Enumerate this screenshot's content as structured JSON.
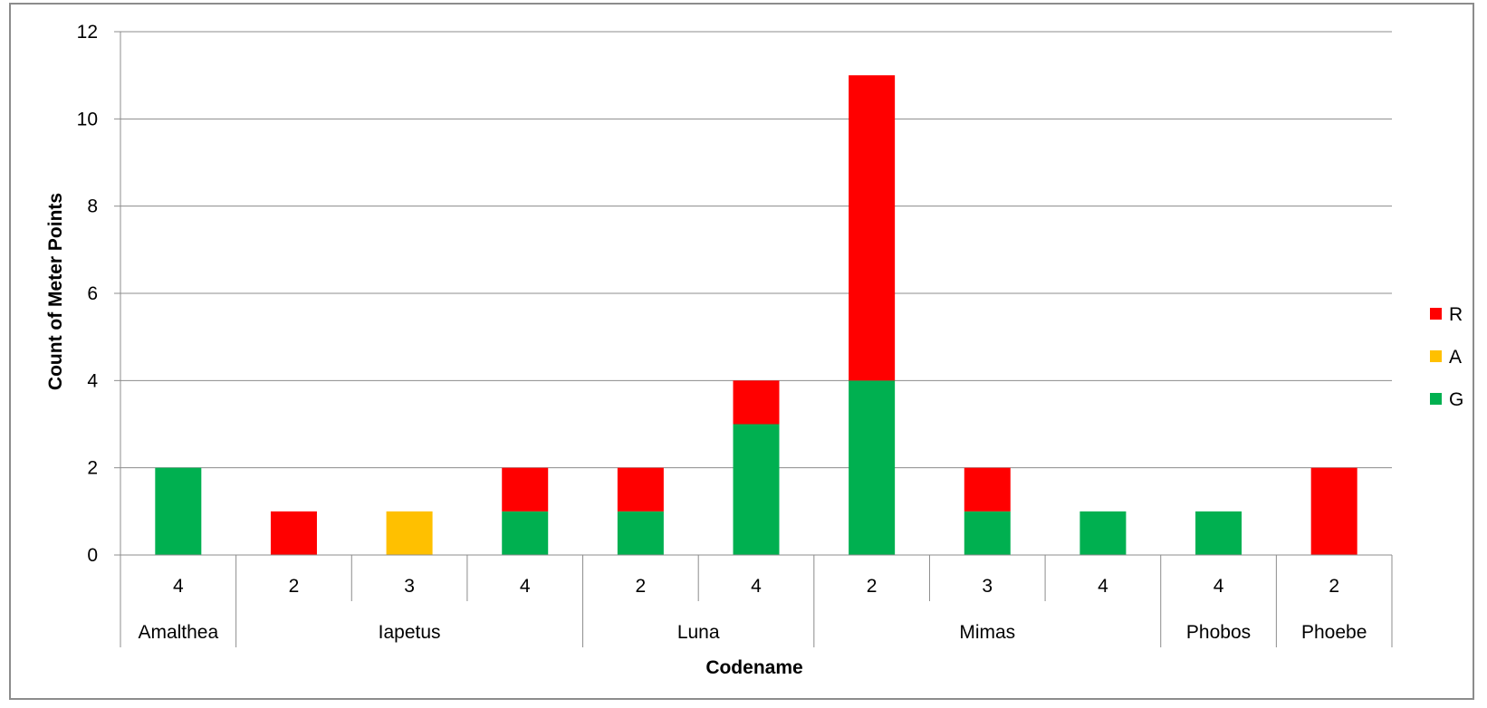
{
  "chart_data": {
    "type": "bar",
    "stacked": true,
    "title": "",
    "xlabel": "Codename",
    "ylabel": "Count of Meter Points",
    "ylim": [
      0,
      12
    ],
    "yticks": [
      0,
      2,
      4,
      6,
      8,
      10,
      12
    ],
    "grid": true,
    "legend_position": "right",
    "categories": [
      {
        "group": "Amalthea",
        "sub": "4"
      },
      {
        "group": "Iapetus",
        "sub": "2"
      },
      {
        "group": "Iapetus",
        "sub": "3"
      },
      {
        "group": "Iapetus",
        "sub": "4"
      },
      {
        "group": "Luna",
        "sub": "2"
      },
      {
        "group": "Luna",
        "sub": "4"
      },
      {
        "group": "Mimas",
        "sub": "2"
      },
      {
        "group": "Mimas",
        "sub": "3"
      },
      {
        "group": "Mimas",
        "sub": "4"
      },
      {
        "group": "Phobos",
        "sub": "4"
      },
      {
        "group": "Phoebe",
        "sub": "2"
      }
    ],
    "groups": [
      "Amalthea",
      "Iapetus",
      "Luna",
      "Mimas",
      "Phobos",
      "Phoebe"
    ],
    "series": [
      {
        "name": "G",
        "color": "#00b050",
        "values": [
          2,
          0,
          0,
          1,
          1,
          3,
          4,
          1,
          1,
          1,
          0
        ]
      },
      {
        "name": "A",
        "color": "#ffc000",
        "values": [
          0,
          0,
          1,
          0,
          0,
          0,
          0,
          0,
          0,
          0,
          0
        ]
      },
      {
        "name": "R",
        "color": "#ff0000",
        "values": [
          0,
          1,
          0,
          1,
          1,
          1,
          7,
          1,
          0,
          0,
          2
        ]
      }
    ],
    "legend_order": [
      "R",
      "A",
      "G"
    ]
  }
}
